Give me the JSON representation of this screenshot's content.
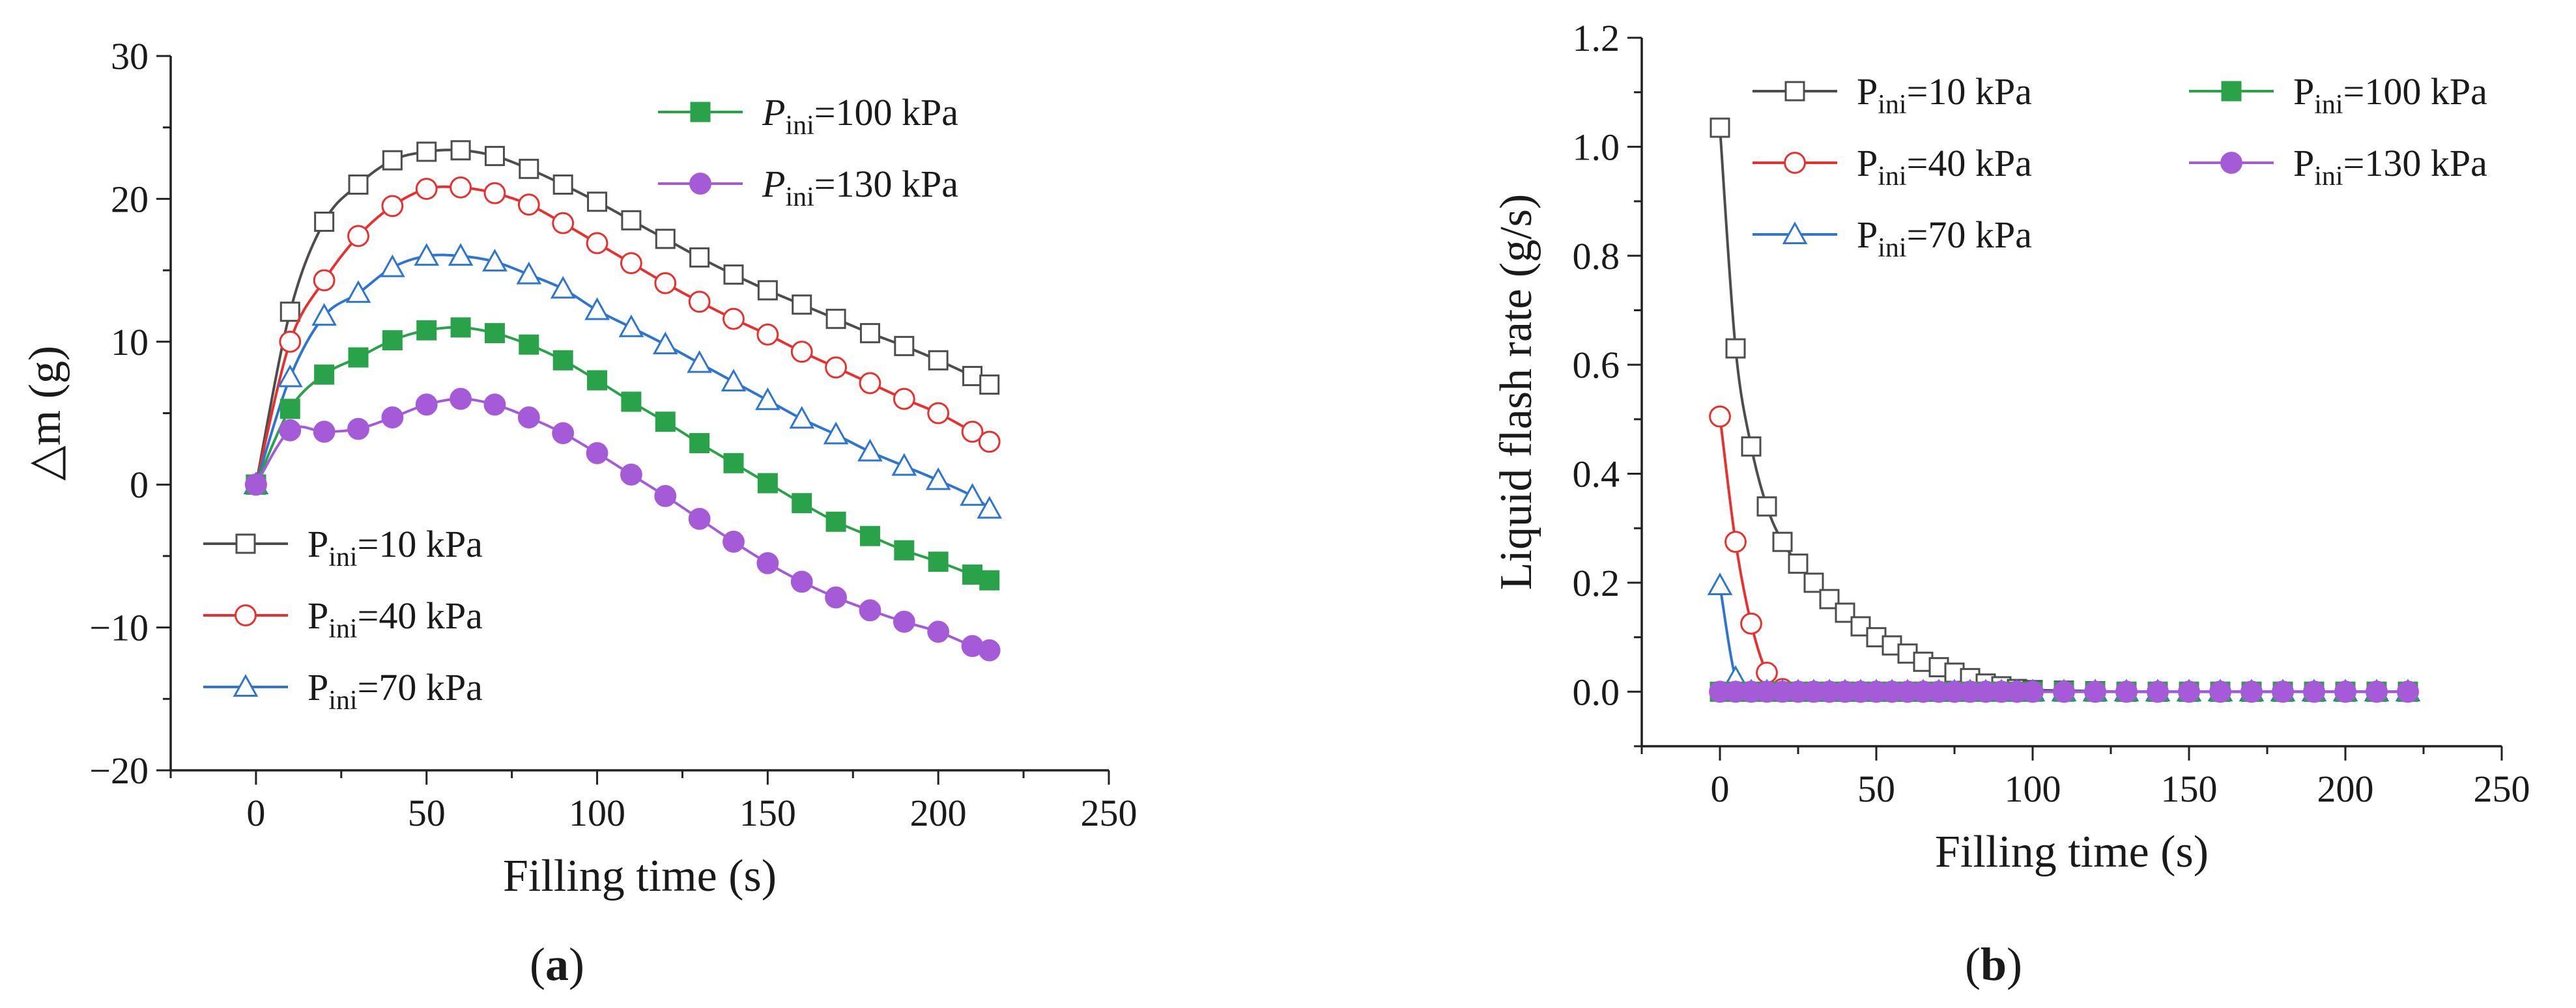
{
  "chart_data": [
    {
      "id": "a",
      "type": "line",
      "panel_label": "a",
      "xlabel": "Filling time (s)",
      "ylabel": "△m (g)",
      "xlim": [
        -25,
        250
      ],
      "ylim": [
        -20,
        30
      ],
      "xticks": [
        0,
        50,
        100,
        150,
        200,
        250
      ],
      "yticks": [
        -20,
        -10,
        0,
        10,
        20,
        30
      ],
      "x": [
        0,
        10,
        20,
        30,
        40,
        50,
        60,
        70,
        80,
        90,
        100,
        110,
        120,
        130,
        140,
        150,
        160,
        170,
        180,
        190,
        200,
        210,
        215
      ],
      "legend_groups": [
        {
          "placement": "top-right",
          "items": [
            3,
            4
          ]
        },
        {
          "placement": "bottom-left",
          "items": [
            0,
            1,
            2
          ]
        }
      ],
      "series": [
        {
          "name_prefix": "P",
          "name_sub": "ini",
          "name_suffix": "=10 kPa",
          "italic": false,
          "color": "#4d4d4d",
          "marker": "open-square",
          "values": [
            0,
            12.1,
            18.4,
            21,
            22.7,
            23.3,
            23.4,
            23,
            22.1,
            21,
            19.8,
            18.5,
            17.2,
            15.9,
            14.7,
            13.6,
            12.6,
            11.6,
            10.6,
            9.7,
            8.7,
            7.6,
            7
          ]
        },
        {
          "name_prefix": "P",
          "name_sub": "ini",
          "name_suffix": "=40 kPa",
          "italic": false,
          "color": "#e8312e",
          "marker": "open-circle",
          "values": [
            0,
            10,
            14.3,
            17.4,
            19.5,
            20.7,
            20.8,
            20.4,
            19.6,
            18.3,
            16.9,
            15.5,
            14.1,
            12.8,
            11.6,
            10.5,
            9.3,
            8.2,
            7.1,
            6,
            5,
            3.7,
            3
          ]
        },
        {
          "name_prefix": "P",
          "name_sub": "ini",
          "name_suffix": "=70 kPa",
          "italic": false,
          "color": "#2e75d0",
          "marker": "open-triangle",
          "values": [
            0,
            7.5,
            11.8,
            13.4,
            15.2,
            16,
            16,
            15.6,
            14.7,
            13.7,
            12.2,
            11,
            9.8,
            8.5,
            7.2,
            5.9,
            4.6,
            3.5,
            2.3,
            1.3,
            0.3,
            -0.8,
            -1.7
          ]
        },
        {
          "name_prefix": "P",
          "name_sub": "ini",
          "name_suffix": "=100 kPa",
          "italic": true,
          "color": "#2aa24a",
          "marker": "filled-square",
          "values": [
            0,
            5.3,
            7.7,
            8.9,
            10.1,
            10.8,
            11,
            10.6,
            9.8,
            8.7,
            7.3,
            5.8,
            4.4,
            2.9,
            1.5,
            0.1,
            -1.3,
            -2.6,
            -3.6,
            -4.6,
            -5.4,
            -6.3,
            -6.7
          ]
        },
        {
          "name_prefix": "P",
          "name_sub": "ini",
          "name_suffix": "=130 kPa",
          "italic": true,
          "color": "#a55bd8",
          "marker": "filled-circle",
          "values": [
            0,
            3.8,
            3.7,
            3.9,
            4.7,
            5.6,
            6,
            5.6,
            4.7,
            3.6,
            2.2,
            0.7,
            -0.8,
            -2.4,
            -4,
            -5.5,
            -6.8,
            -7.9,
            -8.8,
            -9.6,
            -10.3,
            -11.3,
            -11.6
          ]
        }
      ]
    },
    {
      "id": "b",
      "type": "line",
      "panel_label": "b",
      "xlabel": "Filling time (s)",
      "ylabel": "Liquid flash rate (g/s)",
      "xlim": [
        -25,
        250
      ],
      "ylim": [
        -0.1,
        1.2
      ],
      "xticks": [
        0,
        50,
        100,
        150,
        200,
        250
      ],
      "yticks": [
        0.0,
        0.2,
        0.4,
        0.6,
        0.8,
        1.0,
        1.2
      ],
      "x": [
        0,
        5,
        10,
        15,
        20,
        25,
        30,
        35,
        40,
        45,
        50,
        55,
        60,
        65,
        70,
        75,
        80,
        85,
        90,
        95,
        100,
        110,
        120,
        130,
        140,
        150,
        160,
        170,
        180,
        190,
        200,
        210,
        220
      ],
      "legend_groups": [
        {
          "placement": "top-left-column",
          "items": [
            0,
            1,
            2
          ]
        },
        {
          "placement": "top-right-column",
          "items": [
            3,
            4
          ]
        }
      ],
      "series": [
        {
          "name_prefix": "P",
          "name_sub": "ini",
          "name_suffix": "=10 kPa",
          "color": "#4d4d4d",
          "marker": "open-square",
          "values": [
            1.035,
            0.63,
            0.45,
            0.34,
            0.275,
            0.235,
            0.2,
            0.17,
            0.145,
            0.12,
            0.1,
            0.085,
            0.07,
            0.055,
            0.045,
            0.035,
            0.025,
            0.015,
            0.01,
            0.005,
            0.003,
            0.002,
            0.001,
            0,
            0,
            0,
            0,
            0,
            0,
            0,
            0,
            0,
            0
          ]
        },
        {
          "name_prefix": "P",
          "name_sub": "ini",
          "name_suffix": "=40 kPa",
          "color": "#e8312e",
          "marker": "open-circle",
          "values": [
            0.505,
            0.275,
            0.125,
            0.035,
            0.005,
            0,
            0,
            0,
            0,
            0,
            0,
            0,
            0,
            0,
            0,
            0,
            0,
            0,
            0,
            0,
            0,
            0,
            0,
            0,
            0,
            0,
            0,
            0,
            0,
            0,
            0,
            0,
            0
          ]
        },
        {
          "name_prefix": "P",
          "name_sub": "ini",
          "name_suffix": "=70 kPa",
          "color": "#2e75d0",
          "marker": "open-triangle",
          "values": [
            0.195,
            0.025,
            0,
            0,
            0,
            0,
            0,
            0,
            0,
            0,
            0,
            0,
            0,
            0,
            0,
            0,
            0,
            0,
            0,
            0,
            0,
            0,
            0,
            0,
            0,
            0,
            0,
            0,
            0,
            0,
            0,
            0,
            0
          ]
        },
        {
          "name_prefix": "P",
          "name_sub": "ini",
          "name_suffix": "=100 kPa",
          "color": "#2aa24a",
          "marker": "filled-square",
          "values": [
            0,
            0,
            0,
            0,
            0,
            0,
            0,
            0,
            0,
            0,
            0,
            0,
            0,
            0,
            0,
            0,
            0,
            0,
            0,
            0,
            0,
            0,
            0,
            0,
            0,
            0,
            0,
            0,
            0,
            0,
            0,
            0,
            0
          ]
        },
        {
          "name_prefix": "P",
          "name_sub": "ini",
          "name_suffix": "=130 kPa",
          "color": "#a55bd8",
          "marker": "filled-circle",
          "values": [
            0,
            0,
            0,
            0,
            0,
            0,
            0,
            0,
            0,
            0,
            0,
            0,
            0,
            0,
            0,
            0,
            0,
            0,
            0,
            0,
            0,
            0,
            0,
            0,
            0,
            0,
            0,
            0,
            0,
            0,
            0,
            0,
            0
          ]
        }
      ]
    }
  ]
}
